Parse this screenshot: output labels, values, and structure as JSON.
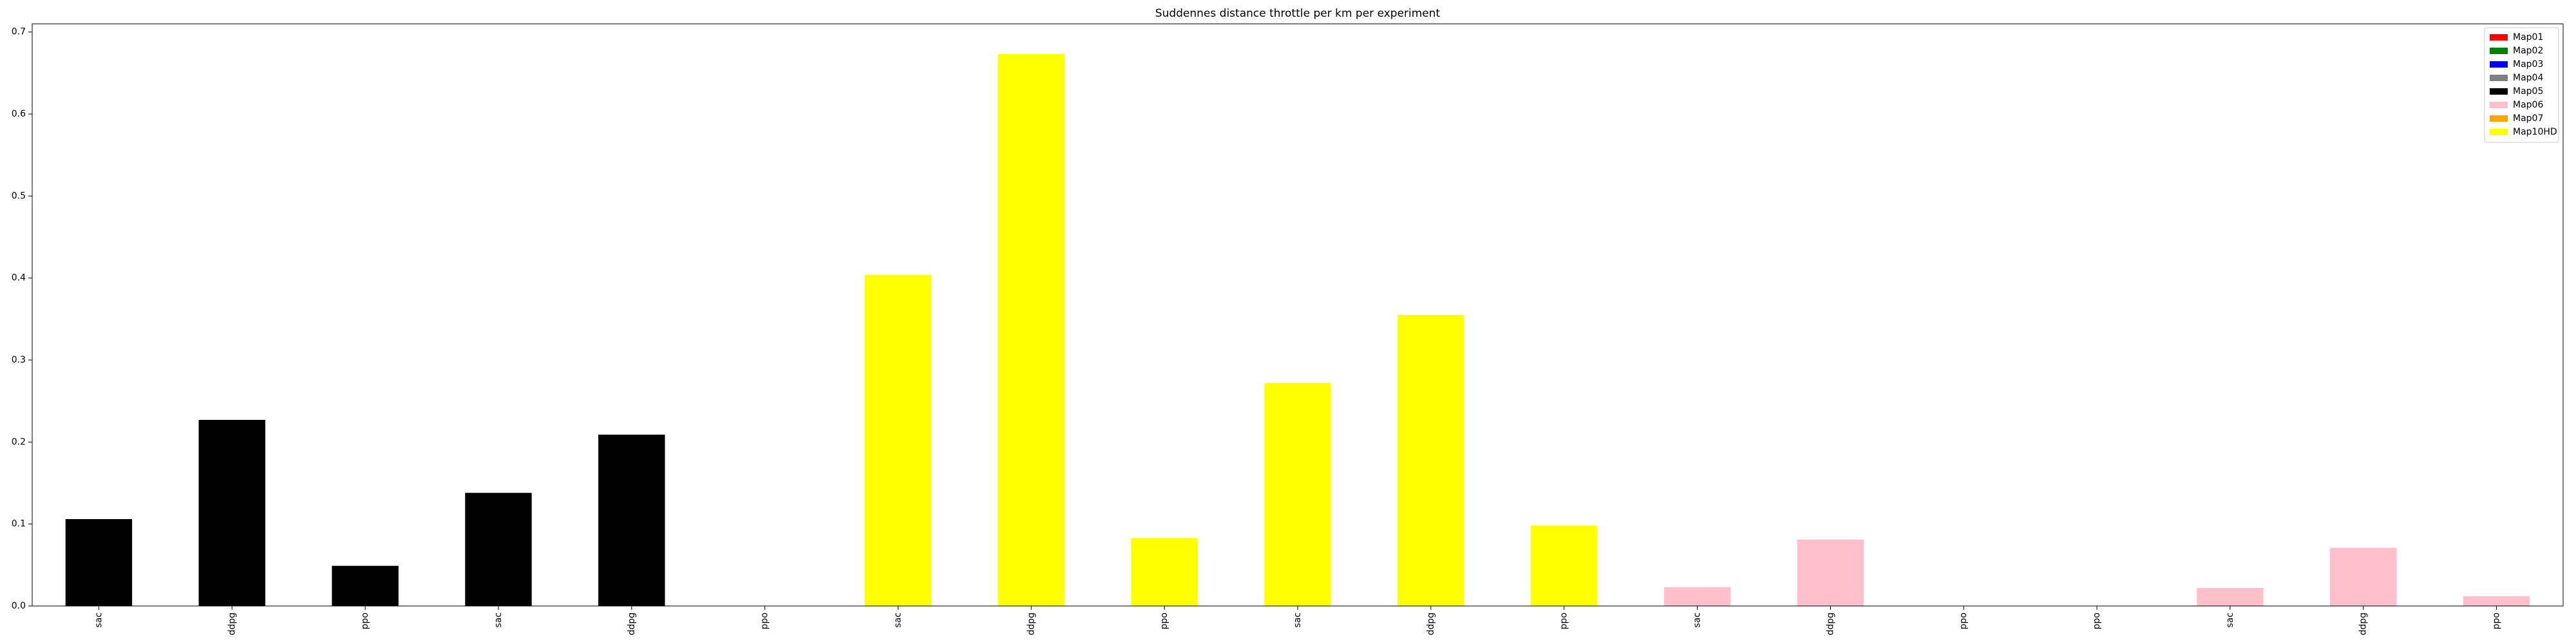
{
  "chart_data": {
    "type": "bar",
    "title": "Suddennes distance throttle per km per experiment",
    "xlabel": "",
    "ylabel": "",
    "ylim": [
      0,
      0.71
    ],
    "yticks": [
      "0.0",
      "0.1",
      "0.2",
      "0.3",
      "0.4",
      "0.5",
      "0.6",
      "0.7"
    ],
    "categories": [
      "sac",
      "ddpg",
      "ppo",
      "sac",
      "ddpg",
      "ppo",
      "sac",
      "ddpg",
      "ppo",
      "sac",
      "ddpg",
      "ppo",
      "sac",
      "ddpg",
      "ppo",
      "ppo",
      "sac",
      "ddpg",
      "ppo"
    ],
    "values": [
      0.106,
      0.227,
      0.049,
      0.138,
      0.209,
      0.0,
      0.404,
      0.673,
      0.083,
      0.272,
      0.355,
      0.098,
      0.023,
      0.081,
      0.0,
      0.0,
      0.022,
      0.071,
      0.012
    ],
    "bar_colors": [
      "#000000",
      "#000000",
      "#000000",
      "#000000",
      "#000000",
      "#000000",
      "#ffff00",
      "#ffff00",
      "#ffff00",
      "#ffff00",
      "#ffff00",
      "#ffff00",
      "#ffc0cb",
      "#ffc0cb",
      "#ffc0cb",
      "#ffc0cb",
      "#ffc0cb",
      "#ffc0cb",
      "#ffc0cb"
    ],
    "legend_position": "top-right",
    "legend": [
      {
        "name": "Map01",
        "color": "#ff0000"
      },
      {
        "name": "Map02",
        "color": "#008000"
      },
      {
        "name": "Map03",
        "color": "#0000ff"
      },
      {
        "name": "Map04",
        "color": "#808080"
      },
      {
        "name": "Map05",
        "color": "#000000"
      },
      {
        "name": "Map06",
        "color": "#ffc0cb"
      },
      {
        "name": "Map07",
        "color": "#ffa500"
      },
      {
        "name": "Map10HD",
        "color": "#ffff00"
      }
    ],
    "grid": false
  }
}
